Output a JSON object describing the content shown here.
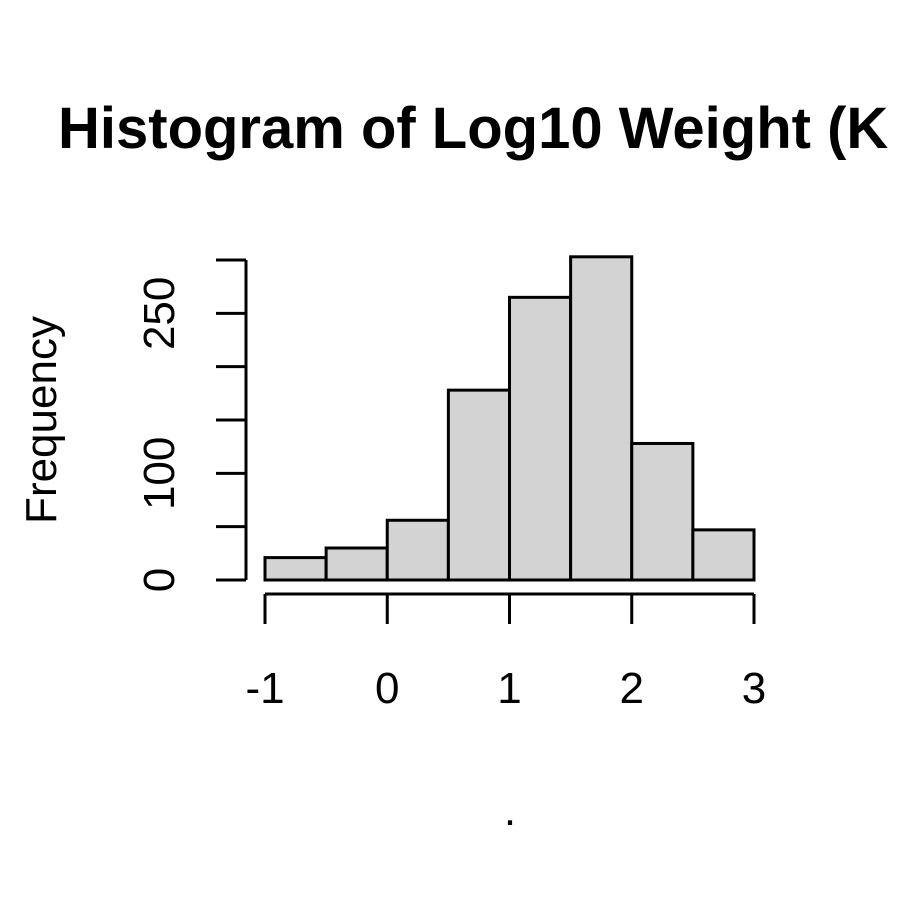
{
  "chart_data": {
    "type": "bar",
    "title": "Histogram of Log10 Weight (K",
    "xlabel": ".",
    "ylabel": "Frequency",
    "bins": [
      {
        "start": -1.0,
        "end": -0.5,
        "count": 21
      },
      {
        "start": -0.5,
        "end": 0.0,
        "count": 30
      },
      {
        "start": 0.0,
        "end": 0.5,
        "count": 56
      },
      {
        "start": 0.5,
        "end": 1.0,
        "count": 178
      },
      {
        "start": 1.0,
        "end": 1.5,
        "count": 265
      },
      {
        "start": 1.5,
        "end": 2.0,
        "count": 303
      },
      {
        "start": 2.0,
        "end": 2.5,
        "count": 128
      },
      {
        "start": 2.5,
        "end": 3.0,
        "count": 47
      }
    ],
    "xlim": [
      -1,
      3
    ],
    "ylim": [
      0,
      300
    ],
    "x_ticks": [
      -1,
      0,
      1,
      2,
      3
    ],
    "x_tick_labels": [
      "-1",
      "0",
      "1",
      "2",
      "3"
    ],
    "y_ticks": [
      0,
      50,
      100,
      150,
      200,
      250,
      300
    ],
    "y_tick_labels": [
      "0",
      "",
      "100",
      "",
      "",
      "250",
      ""
    ],
    "bar_fill": "#d3d3d3",
    "bar_stroke": "#000000",
    "grid": false
  }
}
